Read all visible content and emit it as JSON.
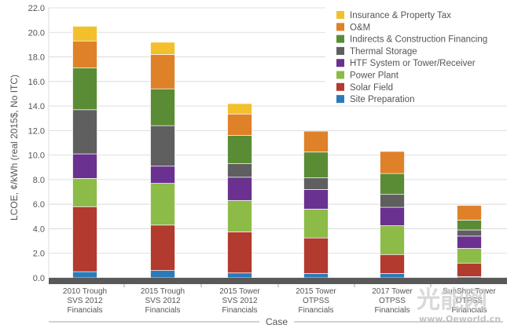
{
  "chart_data": {
    "type": "bar",
    "stacked": true,
    "title": "",
    "ylabel": "LCOE, ¢/kWh (real 2015$, No ITC)",
    "xlabel": "Case",
    "ylim": [
      0,
      22
    ],
    "yticks": [
      "0.0",
      "2.0",
      "4.0",
      "6.0",
      "8.0",
      "10.0",
      "12.0",
      "14.0",
      "16.0",
      "18.0",
      "20.0",
      "22.0"
    ],
    "grid": true,
    "legend_position": "top-right",
    "categories": [
      [
        "2010 Trough",
        "SVS 2012",
        "Financials"
      ],
      [
        "2015 Trough",
        "SVS 2012",
        "Financials"
      ],
      [
        "2015 Tower",
        "SVS 2012",
        "Financials"
      ],
      [
        "2015 Tower",
        "OTPSS",
        "Financials"
      ],
      [
        "2017 Tower",
        "OTPSS",
        "Financials"
      ],
      [
        "SunShot Tower",
        "OTPSS",
        "Financials"
      ]
    ],
    "series": [
      {
        "name": "Site Preparation",
        "color": "#2b7bba",
        "values": [
          0.5,
          0.6,
          0.4,
          0.35,
          0.35,
          0.1
        ]
      },
      {
        "name": "Solar Field",
        "color": "#b23a2e",
        "values": [
          5.3,
          3.7,
          3.35,
          2.9,
          1.55,
          1.1
        ]
      },
      {
        "name": "Power Plant",
        "color": "#8dbb48",
        "values": [
          2.3,
          3.4,
          2.55,
          2.35,
          2.35,
          1.2
        ]
      },
      {
        "name": "HTF System or Tower/Receiver",
        "color": "#6a3191",
        "values": [
          2.0,
          1.4,
          1.9,
          1.6,
          1.5,
          1.0
        ]
      },
      {
        "name": "Thermal Storage",
        "color": "#5f5f5f",
        "values": [
          3.6,
          3.3,
          1.1,
          0.95,
          1.05,
          0.5
        ]
      },
      {
        "name": "Indirects & Construction Financing",
        "color": "#5a8c35",
        "values": [
          3.4,
          3.0,
          2.3,
          2.1,
          1.7,
          0.8
        ]
      },
      {
        "name": "O&M",
        "color": "#df8129",
        "values": [
          2.2,
          2.8,
          1.75,
          1.7,
          1.8,
          1.2
        ]
      },
      {
        "name": "Insurance & Property Tax",
        "color": "#f3c02c",
        "values": [
          1.2,
          1.0,
          0.85,
          0.0,
          0.0,
          0.0
        ]
      }
    ]
  },
  "watermark": {
    "text": "光能网",
    "url": "www.Oeworld.cn"
  }
}
